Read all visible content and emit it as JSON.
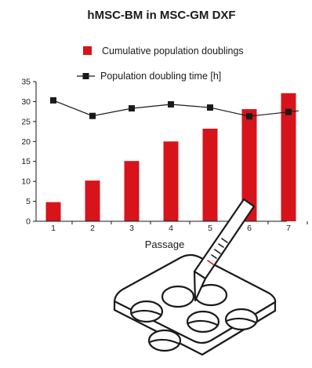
{
  "chart_data": {
    "type": "bar",
    "title": "hMSC-BM in MSC-GM DXF",
    "xlabel": "Passage",
    "ylabel": "",
    "categories": [
      "1",
      "2",
      "3",
      "4",
      "5",
      "6",
      "7"
    ],
    "ylim": [
      0,
      35
    ],
    "yticks": [
      0,
      5,
      10,
      15,
      20,
      25,
      30,
      35
    ],
    "grid": false,
    "legend_position": "top",
    "series": [
      {
        "name": "Cumulative population doublings",
        "type": "bar",
        "color": "#d7141a",
        "values": [
          4.8,
          10.2,
          15.1,
          20.0,
          23.2,
          28.1,
          32.1
        ]
      },
      {
        "name": "Population doubling time [h]",
        "type": "line",
        "marker": "square",
        "color": "#1a1a1a",
        "values": [
          30.3,
          26.4,
          28.3,
          29.3,
          28.5,
          26.3,
          27.4
        ]
      }
    ]
  },
  "illustration": {
    "icon": "pipette-well-plate-icon",
    "stroke_color": "#1a1a1a",
    "accent_color": "#d7141a"
  }
}
